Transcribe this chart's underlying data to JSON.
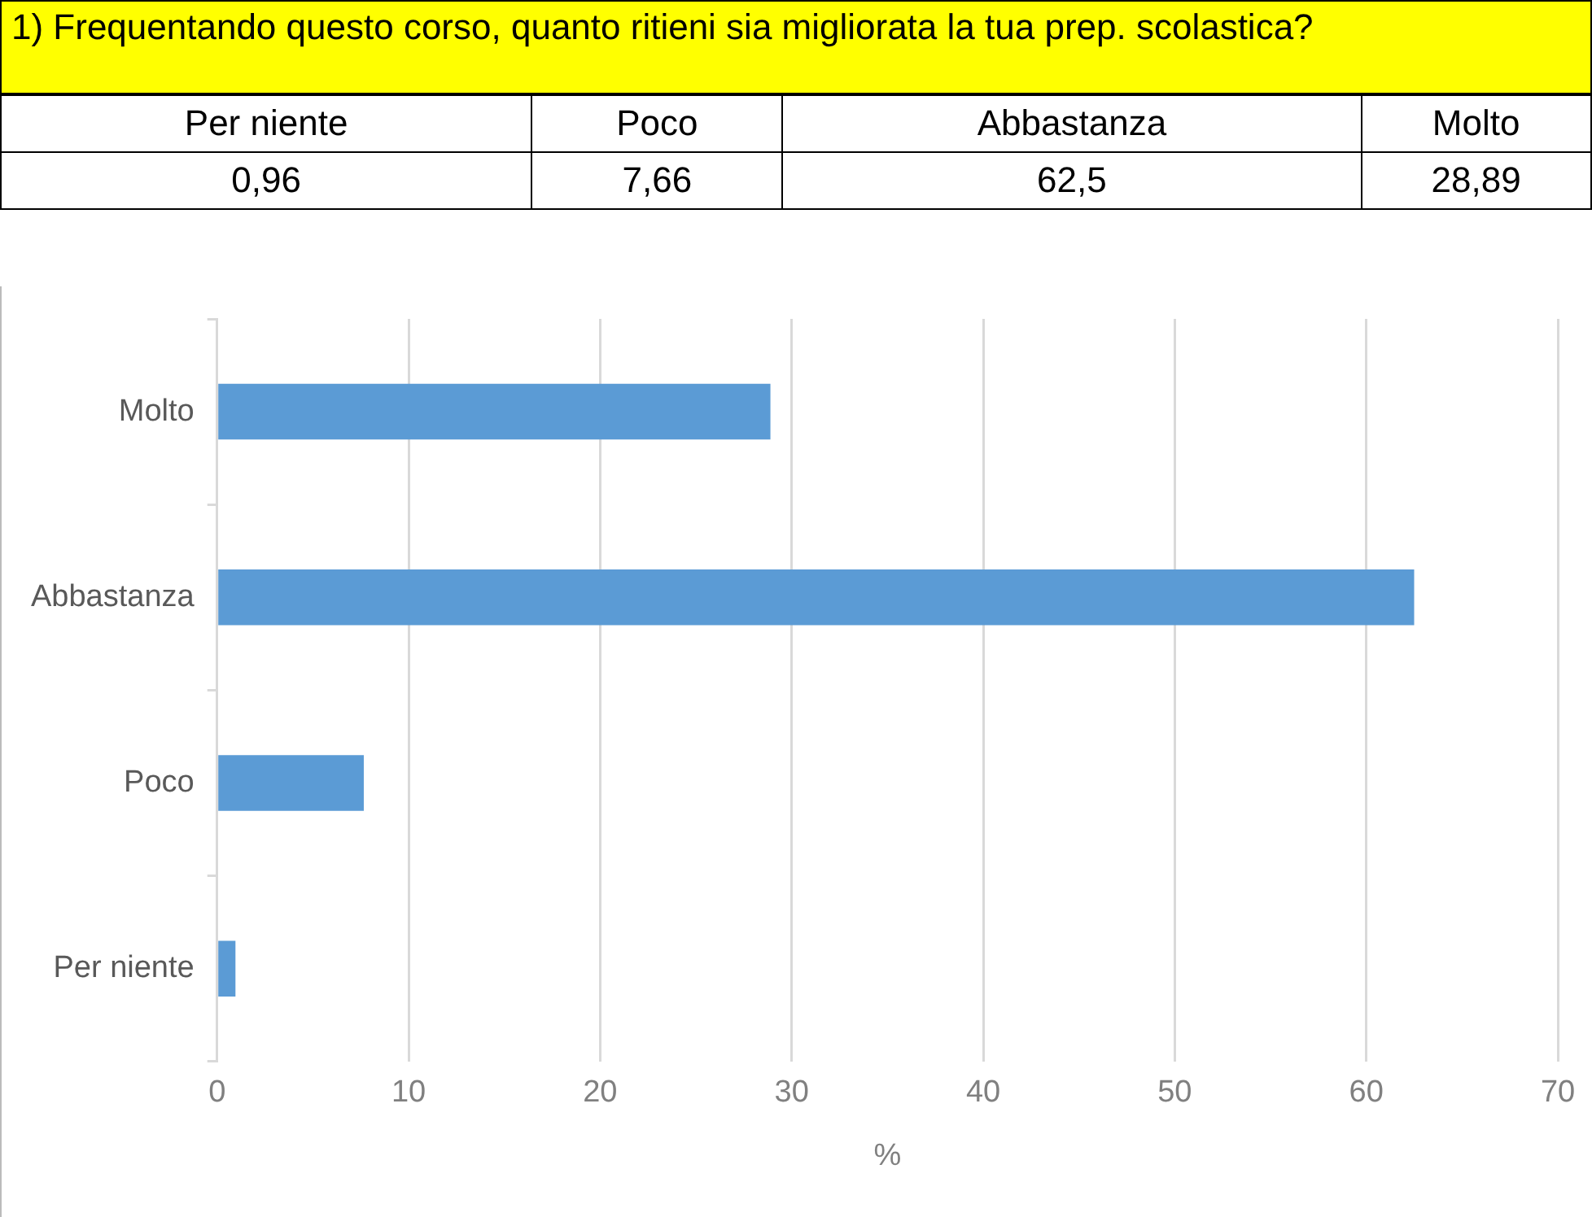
{
  "chart_data": {
    "type": "bar",
    "orientation": "horizontal",
    "title": "1) Frequentando questo corso, quanto ritieni sia migliorata la tua prep. scolastica?",
    "categories": [
      "Molto",
      "Abbastanza",
      "Poco",
      "Per niente"
    ],
    "values": [
      28.89,
      62.5,
      7.66,
      0.96
    ],
    "annotations": [
      "Per niente",
      "Poco",
      "Abbastanza",
      "Molto",
      "0,96",
      "7,66",
      "62,5",
      "28,89"
    ],
    "color": "#5b9bd5",
    "xlabel": "%",
    "xlim": [
      0,
      70
    ],
    "xticks": [
      0,
      10,
      20,
      30,
      40,
      50,
      60,
      70
    ],
    "grid": "x",
    "legend": false
  }
}
